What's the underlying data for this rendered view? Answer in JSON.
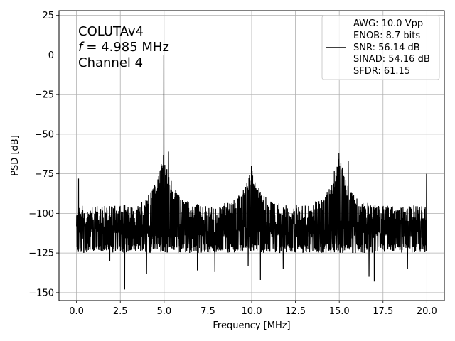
{
  "chart_data": {
    "type": "line",
    "xlabel": "Frequency [MHz]",
    "ylabel": "PSD [dB]",
    "xlim": [
      -1.0,
      21.0
    ],
    "ylim": [
      -155,
      28
    ],
    "xticks": [
      0.0,
      2.5,
      5.0,
      7.5,
      10.0,
      12.5,
      15.0,
      17.5,
      20.0
    ],
    "xtick_labels": [
      "0.0",
      "2.5",
      "5.0",
      "7.5",
      "10.0",
      "12.5",
      "15.0",
      "17.5",
      "20.0"
    ],
    "yticks": [
      25,
      0,
      -25,
      -50,
      -75,
      -100,
      -125,
      -150
    ],
    "ytick_labels": [
      "25",
      "0",
      "−25",
      "−50",
      "−75",
      "−100",
      "−125",
      "−150"
    ],
    "grid": true,
    "annotations": [
      "COLUTAv4",
      "= 4.985 MHz",
      "Channel 4"
    ],
    "annotation_f_symbol": "f",
    "legend": {
      "placement": "top-right",
      "lines": [
        "AWG: 10.0 Vpp",
        "ENOB: 8.7 bits",
        "SNR: 56.14 dB",
        "SINAD: 54.16 dB",
        "SFDR: 61.15"
      ]
    },
    "series": [
      {
        "color": "#000000",
        "fundamental": {
          "x": 4.985,
          "y": 0.0
        },
        "noise_floor": -110,
        "noise_range": [
          -125,
          -95
        ],
        "min_dips": [
          {
            "x": 0.2,
            "y": -122
          },
          {
            "x": 1.9,
            "y": -130
          },
          {
            "x": 2.75,
            "y": -148
          },
          {
            "x": 4.0,
            "y": -138
          },
          {
            "x": 6.9,
            "y": -136
          },
          {
            "x": 7.9,
            "y": -137
          },
          {
            "x": 9.8,
            "y": -133
          },
          {
            "x": 10.5,
            "y": -142
          },
          {
            "x": 11.8,
            "y": -135
          },
          {
            "x": 16.7,
            "y": -140
          },
          {
            "x": 17.0,
            "y": -143
          },
          {
            "x": 18.9,
            "y": -135
          }
        ],
        "harmonic_groups": [
          {
            "center": 4.985,
            "peak": -61
          },
          {
            "center": 10.0,
            "peak": -71
          },
          {
            "center": 15.0,
            "peak": -62
          }
        ],
        "spurs": [
          {
            "x": 0.12,
            "y": -78
          },
          {
            "x": 4.72,
            "y": -73
          },
          {
            "x": 5.25,
            "y": -61
          },
          {
            "x": 9.98,
            "y": -70
          },
          {
            "x": 14.72,
            "y": -73
          },
          {
            "x": 14.98,
            "y": -62
          },
          {
            "x": 15.52,
            "y": -67
          },
          {
            "x": 19.98,
            "y": -75
          }
        ]
      }
    ]
  }
}
